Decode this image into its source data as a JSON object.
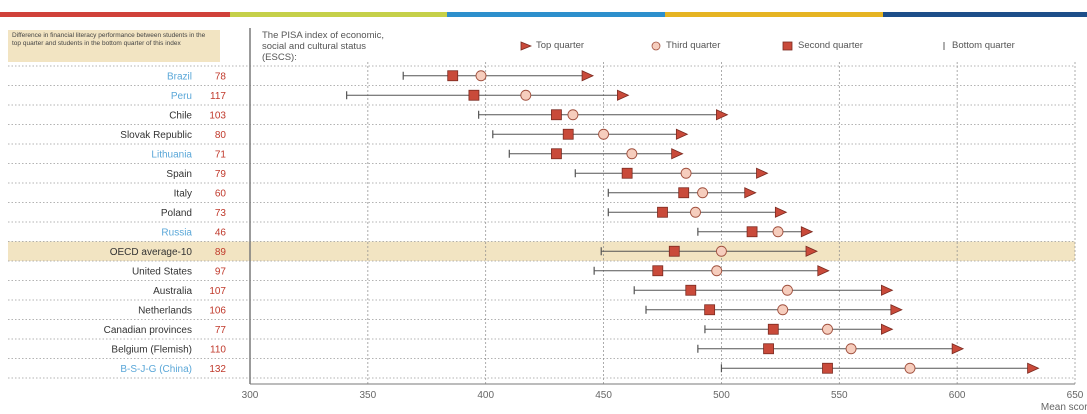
{
  "header": {
    "diff_label": "Difference in financial literacy performance between students in the top quarter and students in the bottom quarter of this index",
    "legend_title": "The PISA index of economic, social and cultural status (ESCS):",
    "legend": [
      {
        "label": "Top quarter",
        "marker": "triangle"
      },
      {
        "label": "Third quarter",
        "marker": "circle"
      },
      {
        "label": "Second quarter",
        "marker": "square"
      },
      {
        "label": "Bottom quarter",
        "marker": "bar"
      }
    ]
  },
  "colors": {
    "marker_fill": "#c94a3a",
    "circle_fill": "#f6cdbd",
    "highlight_row": "#f2e4c2",
    "value_text": "#c0392b",
    "link_text": "#5aa7d8",
    "plot_border": "#7a7a7a",
    "topbar": [
      "#d0413a",
      "#c5d049",
      "#2d8fcc",
      "#e6b422",
      "#1d4e89"
    ]
  },
  "chart_data": {
    "type": "dot-range",
    "xlabel": "Mean score",
    "xlim": [
      300,
      650
    ],
    "xticks": [
      300,
      350,
      400,
      450,
      500,
      550,
      600,
      650
    ],
    "rows": [
      {
        "country": "Brazil",
        "value": "78",
        "link": true,
        "bottom": 365,
        "second": 386,
        "third": 398,
        "top": 443
      },
      {
        "country": "Peru",
        "value": "117",
        "link": true,
        "bottom": 341,
        "second": 395,
        "third": 417,
        "top": 458
      },
      {
        "country": "Chile",
        "value": "103",
        "link": false,
        "bottom": 397,
        "second": 430,
        "third": 437,
        "top": 500
      },
      {
        "country": "Slovak Republic",
        "value": "80",
        "link": false,
        "bottom": 403,
        "second": 435,
        "third": 450,
        "top": 483
      },
      {
        "country": "Lithuania",
        "value": "71",
        "link": true,
        "bottom": 410,
        "second": 430,
        "third": 462,
        "top": 481
      },
      {
        "country": "Spain",
        "value": "79",
        "link": false,
        "bottom": 438,
        "second": 460,
        "third": 485,
        "top": 517
      },
      {
        "country": "Italy",
        "value": "60",
        "link": false,
        "bottom": 452,
        "second": 484,
        "third": 492,
        "top": 512
      },
      {
        "country": "Poland",
        "value": "73",
        "link": false,
        "bottom": 452,
        "second": 475,
        "third": 489,
        "top": 525
      },
      {
        "country": "Russia",
        "value": "46",
        "link": true,
        "bottom": 490,
        "second": 513,
        "third": 524,
        "top": 536
      },
      {
        "country": "OECD average-10",
        "value": "89",
        "link": false,
        "highlight": true,
        "bottom": 449,
        "second": 480,
        "third": 500,
        "top": 538
      },
      {
        "country": "United States",
        "value": "97",
        "link": false,
        "bottom": 446,
        "second": 473,
        "third": 498,
        "top": 543
      },
      {
        "country": "Australia",
        "value": "107",
        "link": false,
        "bottom": 463,
        "second": 487,
        "third": 528,
        "top": 570
      },
      {
        "country": "Netherlands",
        "value": "106",
        "link": false,
        "bottom": 468,
        "second": 495,
        "third": 526,
        "top": 574
      },
      {
        "country": "Canadian provinces",
        "value": "77",
        "link": false,
        "bottom": 493,
        "second": 522,
        "third": 545,
        "top": 570
      },
      {
        "country": "Belgium (Flemish)",
        "value": "110",
        "link": false,
        "bottom": 490,
        "second": 520,
        "third": 555,
        "top": 600
      },
      {
        "country": "B-S-J-G (China)",
        "value": "132",
        "link": true,
        "bottom": 500,
        "second": 545,
        "third": 580,
        "top": 632
      }
    ]
  }
}
